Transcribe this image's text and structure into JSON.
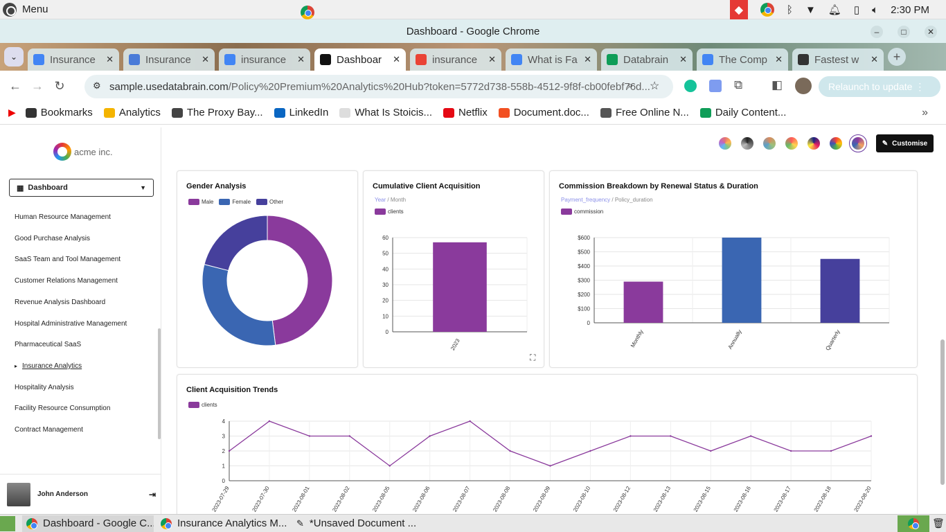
{
  "os": {
    "menu_label": "Menu",
    "clock": "2:30 PM"
  },
  "window": {
    "title": "Dashboard - Google Chrome"
  },
  "tabs": [
    {
      "label": "Insurance",
      "color": "#4285f4"
    },
    {
      "label": "Insurance",
      "color": "#4a7bd8"
    },
    {
      "label": "insurance",
      "color": "#4285f4"
    },
    {
      "label": "Dashboar",
      "color": "#111111"
    },
    {
      "label": "insurance",
      "color": "#ea4335"
    },
    {
      "label": "What is Fa",
      "color": "#4285f4"
    },
    {
      "label": "Databrain",
      "color": "#0f9d58"
    },
    {
      "label": "The Comp",
      "color": "#4285f4"
    },
    {
      "label": "Fastest w",
      "color": "#333333"
    }
  ],
  "address": {
    "host": "sample.usedatabrain.com",
    "path": "/Policy%20Premium%20Analytics%20Hub?token=5772d738-558b-4512-9f8f-cb00febf76d...",
    "relaunch": "Relaunch to update"
  },
  "bookmarks": [
    {
      "label": "Bookmarks",
      "color": "#333333"
    },
    {
      "label": "Analytics",
      "color": "#f4b400"
    },
    {
      "label": "The Proxy Bay...",
      "color": "#444444"
    },
    {
      "label": "LinkedIn",
      "color": "#0a66c2"
    },
    {
      "label": "What Is Stoicis...",
      "color": "#dddddd"
    },
    {
      "label": "Netflix",
      "color": "#e50914"
    },
    {
      "label": "Document.doc...",
      "color": "#f25022"
    },
    {
      "label": "Free Online N...",
      "color": "#555555"
    },
    {
      "label": "Daily Content...",
      "color": "#0f9d58"
    }
  ],
  "sidebar": {
    "brand": "acme inc.",
    "dashboard_select": "Dashboard",
    "items": [
      "Human Resource Management",
      "Good Purchase Analysis",
      "SaaS Team and Tool Management",
      "Customer Relations Management",
      "Revenue Analysis Dashboard",
      "Hospital Administrative Management",
      "Pharmaceutical SaaS",
      "Insurance Analytics",
      "Hospitality Analysis",
      "Facility Resource Consumption",
      "Contract Management"
    ],
    "active_item": "Insurance Analytics",
    "user_name": "John Anderson"
  },
  "toolbar": {
    "customise_label": "Customise"
  },
  "cards": {
    "gender": {
      "title": "Gender Analysis",
      "chart_data": {
        "type": "pie",
        "categories": [
          "Male",
          "Female",
          "Other"
        ],
        "values": [
          48,
          31,
          21
        ],
        "colors": [
          "#8a3a9c",
          "#3a66b2",
          "#46409c"
        ]
      }
    },
    "cumulative": {
      "title": "Cumulative Client Acquisition",
      "sub_active": "Year",
      "sub_rest": "/ Month",
      "legend": "clients",
      "chart_data": {
        "type": "bar",
        "categories": [
          "2023"
        ],
        "values": [
          57
        ],
        "ylim": [
          0,
          60
        ],
        "yticks": [
          0,
          10,
          20,
          30,
          40,
          50,
          60
        ],
        "color": "#8a3a9c"
      }
    },
    "commission": {
      "title": "Commission Breakdown by Renewal Status & Duration",
      "sub_active": "Payment_frequency",
      "sub_rest": "/ Policy_duration",
      "legend": "commission",
      "chart_data": {
        "type": "bar",
        "categories": [
          "Monthly",
          "Annually",
          "Quarterly"
        ],
        "values": [
          290,
          600,
          450
        ],
        "ylim": [
          0,
          600
        ],
        "yticks": [
          "0",
          "$100",
          "$200",
          "$300",
          "$400",
          "$500",
          "$600"
        ],
        "colors": [
          "#8a3a9c",
          "#3a66b2",
          "#46409c"
        ]
      }
    },
    "trends": {
      "title": "Client Acquisition Trends",
      "legend": "clients",
      "chart_data": {
        "type": "line",
        "x": [
          "2023-07-29",
          "2023-07-30",
          "2023-08-01",
          "2023-08-02",
          "2023-08-05",
          "2023-08-06",
          "2023-08-07",
          "2023-08-08",
          "2023-08-09",
          "2023-08-10",
          "2023-08-12",
          "2023-08-13",
          "2023-08-15",
          "2023-08-16",
          "2023-08-17",
          "2023-08-18",
          "2023-08-20"
        ],
        "values": [
          2,
          4,
          3,
          3,
          1,
          3,
          4,
          2,
          1,
          2,
          3,
          3,
          2,
          3,
          2,
          2,
          3
        ],
        "ylim": [
          0,
          4
        ],
        "yticks": [
          0,
          1,
          2,
          3,
          4
        ],
        "color": "#8a3a9c"
      }
    }
  },
  "taskbar": [
    {
      "label": "Dashboard - Google C..."
    },
    {
      "label": "Insurance Analytics M..."
    },
    {
      "label": "*Unsaved Document ..."
    }
  ]
}
